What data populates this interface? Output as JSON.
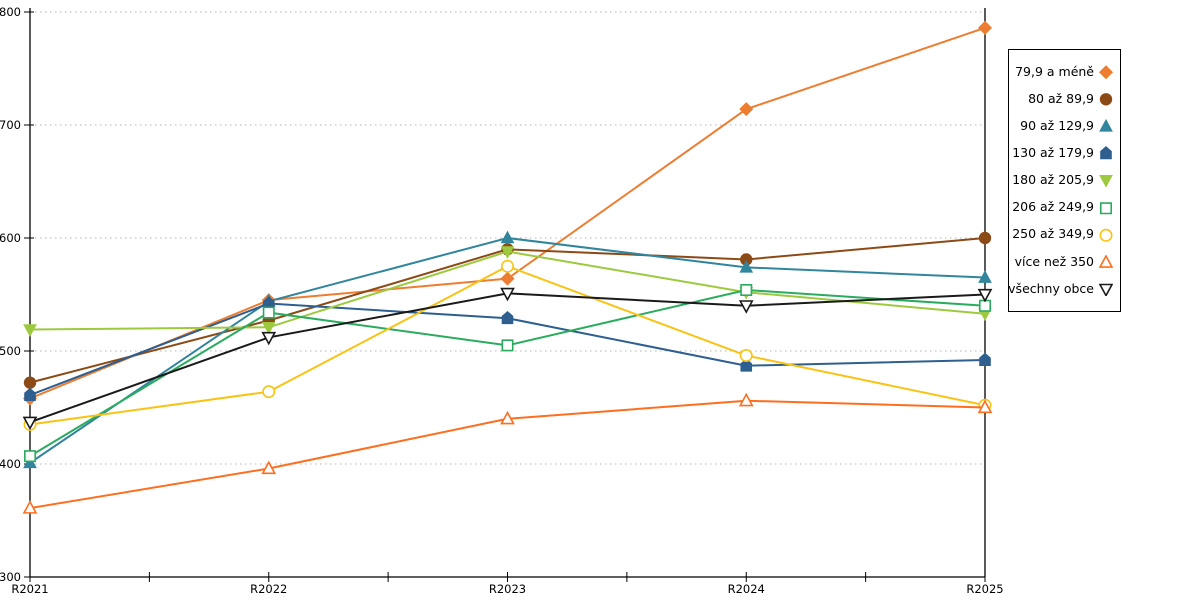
{
  "chart_data": {
    "type": "line",
    "title": "",
    "xlabel": "",
    "ylabel": "",
    "categories": [
      "R2021",
      "R2022",
      "R2023",
      "R2024",
      "R2025"
    ],
    "ylim": [
      300,
      800
    ],
    "ytick_step": 100,
    "y_tick_labels": [
      "300",
      "400",
      "500",
      "600",
      "700",
      "800"
    ],
    "grid": "horizontal-dotted",
    "legend_position": "right",
    "series": [
      {
        "name": "79,9 a méně",
        "marker": "diamond",
        "fill": "solid",
        "color": "#ed7d31",
        "values": [
          458,
          545,
          564,
          714,
          786
        ]
      },
      {
        "name": "80 až 89,9",
        "marker": "circle",
        "fill": "solid",
        "color": "#8c4a17",
        "values": [
          472,
          527,
          590,
          581,
          600
        ]
      },
      {
        "name": "90 až 129,9",
        "marker": "triangle-up",
        "fill": "solid",
        "color": "#31859c",
        "values": [
          401,
          544,
          600,
          574,
          565
        ]
      },
      {
        "name": "130 až 179,9",
        "marker": "pentagon",
        "fill": "solid",
        "color": "#2e5f8f",
        "values": [
          461,
          542,
          529,
          487,
          492
        ]
      },
      {
        "name": "180 až 205,9",
        "marker": "triangle-down",
        "fill": "solid",
        "color": "#9dc93f",
        "values": [
          519,
          521,
          588,
          552,
          533
        ]
      },
      {
        "name": "206 až 249,9",
        "marker": "square",
        "fill": "open",
        "color": "#2bab60",
        "values": [
          407,
          534,
          505,
          554,
          540
        ]
      },
      {
        "name": "250 až 349,9",
        "marker": "circle",
        "fill": "open",
        "color": "#f9c316",
        "values": [
          435,
          464,
          575,
          496,
          452
        ]
      },
      {
        "name": "více než 350",
        "marker": "triangle-up",
        "fill": "open",
        "color": "#ff6e1f",
        "values": [
          361,
          396,
          440,
          456,
          450
        ]
      },
      {
        "name": "všechny obce",
        "marker": "triangle-down",
        "fill": "open",
        "color": "#1a1a1a",
        "values": [
          437,
          512,
          551,
          540,
          550
        ]
      }
    ]
  },
  "colors": {
    "axis": "#000000",
    "grid": "#b5b5b5",
    "tick_label": "#000000",
    "background": "#ffffff",
    "legend_border": "#000000"
  }
}
